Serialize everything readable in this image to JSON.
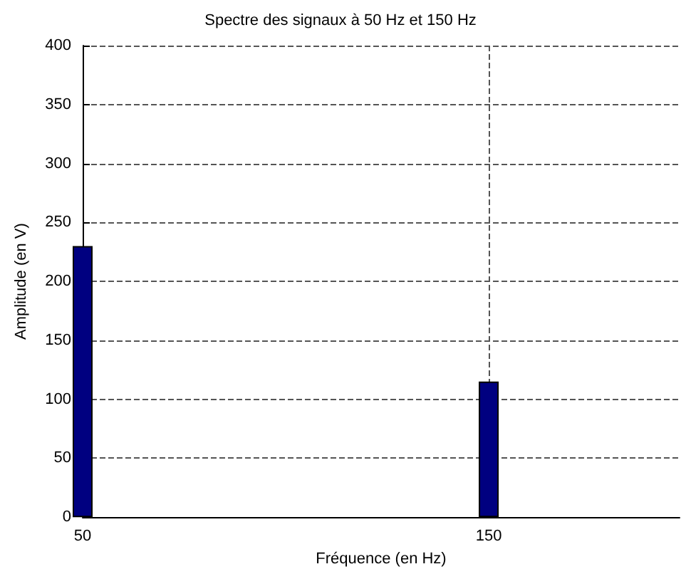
{
  "chart_data": {
    "type": "bar",
    "title": "Spectre des signaux à 50 Hz et 150 Hz",
    "xlabel": "Fréquence (en Hz)",
    "ylabel": "Amplitude (en V)",
    "x": [
      50,
      150
    ],
    "values": [
      230,
      115
    ],
    "color": "#000080",
    "xlim": [
      50,
      197
    ],
    "xticks": [
      50,
      150
    ],
    "ylim": [
      0,
      400
    ],
    "yticks": [
      0,
      50,
      100,
      150,
      200,
      250,
      300,
      350,
      400
    ],
    "grid": true,
    "line_style": "dashed"
  }
}
